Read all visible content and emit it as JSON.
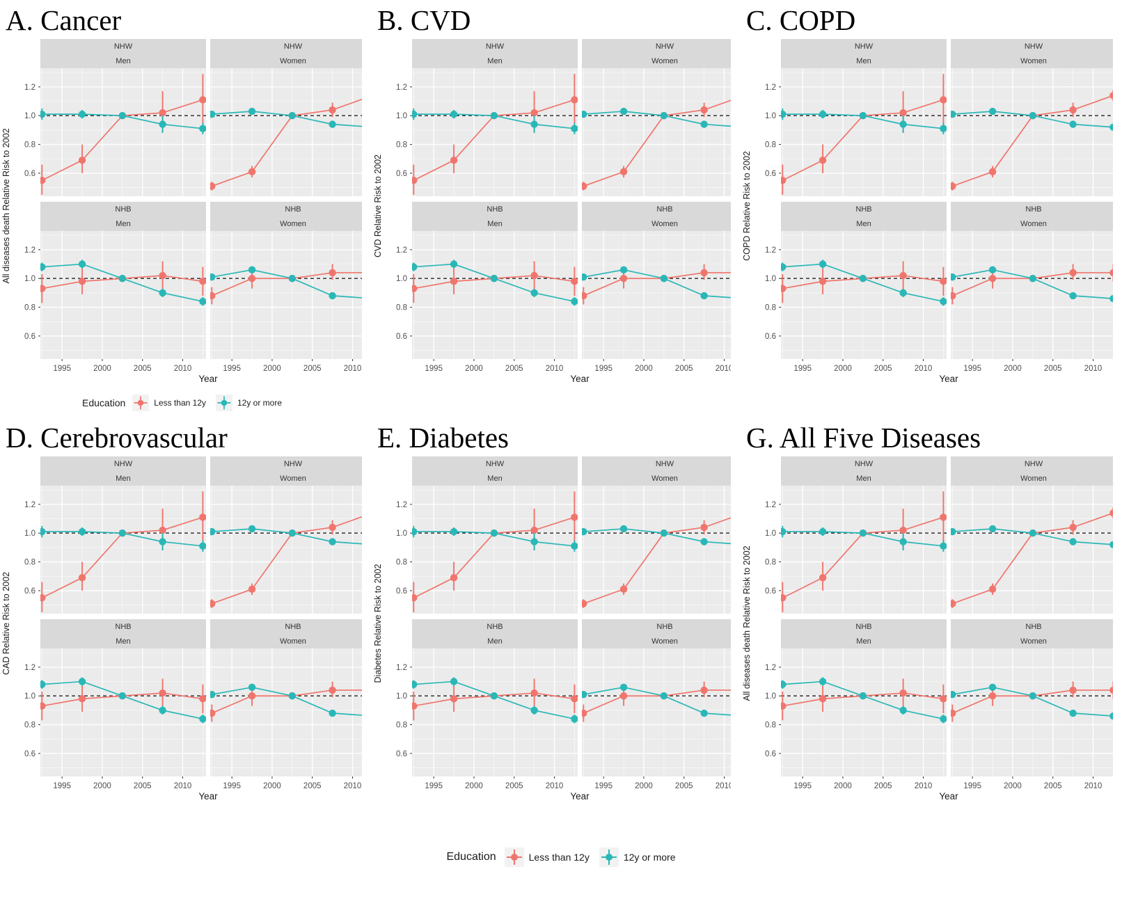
{
  "chart_data": {
    "type": "line",
    "description": "Six faceted pointrange/line chart panels of relative risk of death (vs 2002) by education level, faceted by race (NHW, NHB) and sex (Men, Women).",
    "x": [
      1992.5,
      1997.5,
      2002.5,
      2007.5,
      2012.5
    ],
    "x_axis": {
      "label": "Year",
      "ticks": [
        1995,
        2000,
        2005,
        2010
      ],
      "range": [
        1992.3,
        2012.9
      ]
    },
    "y_axis": {
      "ticks": [
        1.2,
        1.0,
        0.8,
        0.6
      ],
      "minor": [
        1.3,
        1.1,
        0.9,
        0.7,
        0.5
      ],
      "range": [
        0.44,
        1.33
      ],
      "reference_line": 1.0
    },
    "facet_rows": [
      "NHW",
      "NHB"
    ],
    "facet_cols": [
      "Men",
      "Women"
    ],
    "grid": true,
    "legend": {
      "title": "Education",
      "position": "bottom",
      "entries": [
        {
          "label": "Less than 12y",
          "color": "#f0756d"
        },
        {
          "label": "12y or more",
          "color": "#2ab7b7"
        }
      ]
    },
    "facets": [
      {
        "race": "NHW",
        "sex": "Men",
        "series": [
          {
            "name": "Less than 12y",
            "y": [
              0.55,
              0.69,
              1.0,
              1.02,
              1.11
            ],
            "lo": [
              0.45,
              0.6,
              1.0,
              0.88,
              0.93
            ],
            "hi": [
              0.66,
              0.8,
              1.0,
              1.17,
              1.29
            ]
          },
          {
            "name": "12y or more",
            "y": [
              1.01,
              1.01,
              1.0,
              0.94,
              0.91
            ],
            "lo": [
              0.97,
              0.98,
              1.0,
              0.88,
              0.87
            ],
            "hi": [
              1.05,
              1.04,
              1.0,
              1.0,
              0.95
            ]
          }
        ]
      },
      {
        "race": "NHW",
        "sex": "Women",
        "series": [
          {
            "name": "Less than 12y",
            "y": [
              0.51,
              0.61,
              1.0,
              1.04,
              1.14
            ],
            "lo": [
              0.48,
              0.57,
              1.0,
              0.99,
              1.1
            ],
            "hi": [
              0.54,
              0.65,
              1.0,
              1.09,
              1.18
            ]
          },
          {
            "name": "12y or more",
            "y": [
              1.01,
              1.03,
              1.0,
              0.94,
              0.92
            ],
            "lo": [
              0.99,
              1.01,
              1.0,
              0.92,
              0.9
            ],
            "hi": [
              1.03,
              1.05,
              1.0,
              0.96,
              0.94
            ]
          }
        ]
      },
      {
        "race": "NHB",
        "sex": "Men",
        "series": [
          {
            "name": "Less than 12y",
            "y": [
              0.93,
              0.98,
              1.0,
              1.02,
              0.98
            ],
            "lo": [
              0.83,
              0.89,
              1.0,
              0.92,
              0.88
            ],
            "hi": [
              1.03,
              1.07,
              1.0,
              1.12,
              1.08
            ]
          },
          {
            "name": "12y or more",
            "y": [
              1.08,
              1.1,
              1.0,
              0.9,
              0.84
            ],
            "lo": [
              1.05,
              1.07,
              1.0,
              0.87,
              0.81
            ],
            "hi": [
              1.11,
              1.13,
              1.0,
              0.93,
              0.87
            ]
          }
        ]
      },
      {
        "race": "NHB",
        "sex": "Women",
        "series": [
          {
            "name": "Less than 12y",
            "y": [
              0.88,
              1.0,
              1.0,
              1.04,
              1.04
            ],
            "lo": [
              0.82,
              0.93,
              1.0,
              0.99,
              0.98
            ],
            "hi": [
              0.94,
              1.07,
              1.0,
              1.1,
              1.1
            ]
          },
          {
            "name": "12y or more",
            "y": [
              1.01,
              1.06,
              1.0,
              0.88,
              0.86
            ],
            "lo": [
              0.99,
              1.04,
              1.0,
              0.86,
              0.84
            ],
            "hi": [
              1.03,
              1.08,
              1.0,
              0.9,
              0.88
            ]
          }
        ]
      }
    ],
    "panels": [
      {
        "id": "A",
        "title": "A. Cancer",
        "ylabel": "All diseases death Relative Risk to 2002"
      },
      {
        "id": "B",
        "title": "B. CVD",
        "ylabel": "CVD Relative Risk to 2002"
      },
      {
        "id": "C",
        "title": "C. COPD",
        "ylabel": "COPD Relative Risk to 2002"
      },
      {
        "id": "D",
        "title": "D. Cerebrovascular",
        "ylabel": "CAD Relative Risk to 2002"
      },
      {
        "id": "E",
        "title": "E. Diabetes",
        "ylabel": "Diabetes Relative Risk to 2002"
      },
      {
        "id": "G",
        "title": "G. All Five Diseases",
        "ylabel": "All diseases death Relative Risk to 2002"
      }
    ],
    "colors": {
      "plot_background": "#ebebeb",
      "strip_background": "#d9d9d9",
      "gridline": "#ffffff",
      "tick_text": "#4d4d4d",
      "strip_text": "#333333",
      "reference_line": "#222222",
      "legend_key_background": "#f2f2f2"
    }
  }
}
